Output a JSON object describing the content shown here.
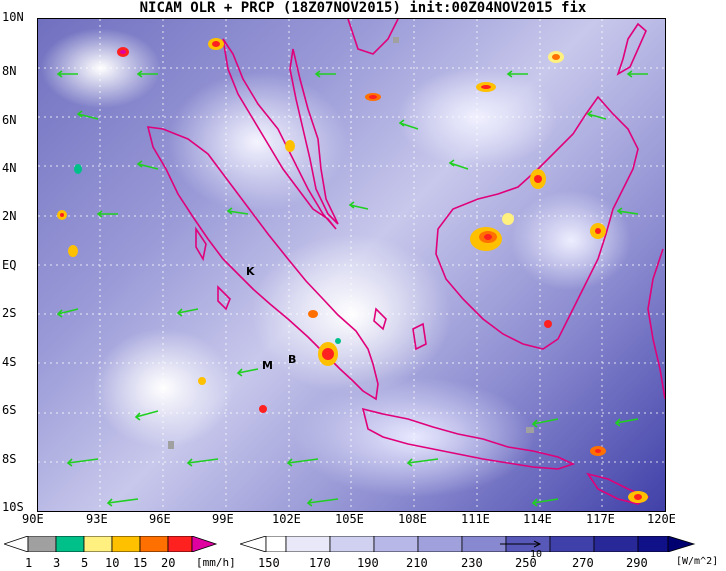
{
  "title": "NICAM OLR + PRCP (18Z07NOV2015) init:00Z04NOV2015 fix",
  "lat_labels": [
    "10N",
    "8N",
    "6N",
    "4N",
    "2N",
    "EQ",
    "2S",
    "4S",
    "6S",
    "8S",
    "10S"
  ],
  "lon_labels": [
    "90E",
    "93E",
    "96E",
    "99E",
    "102E",
    "105E",
    "108E",
    "111E",
    "114E",
    "117E",
    "120E"
  ],
  "map_labels": {
    "k": "K",
    "m": "M",
    "b": "B"
  },
  "prcp_bar": {
    "labels": [
      "1",
      "3",
      "5",
      "10",
      "15",
      "20"
    ],
    "unit": "[mm/h]",
    "colors": [
      "#a0a0a0",
      "#00c08a",
      "#fff080",
      "#ffc000",
      "#ff7000",
      "#ff2020",
      "#e000a0"
    ]
  },
  "olr_bar": {
    "labels": [
      "150",
      "170",
      "190",
      "210",
      "230",
      "250",
      "270",
      "290"
    ],
    "unit": "[W/m^2]",
    "vector_label": "10",
    "colors": [
      "#ffffff",
      "#e8e8f8",
      "#d0d0f0",
      "#b8b8e8",
      "#a0a0dc",
      "#8888d0",
      "#7070c4",
      "#5858b8",
      "#4040aa",
      "#282898",
      "#101088"
    ]
  },
  "colors": {
    "coast": "#e0007a",
    "wind": "#20d020",
    "grid": "#ffffff"
  }
}
